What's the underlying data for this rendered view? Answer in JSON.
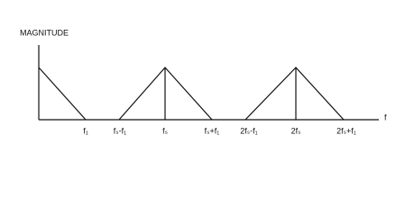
{
  "y_axis_label": "MAGNITUDE",
  "x_axis_label": "f",
  "x_labels": [
    "f₁",
    "fₛ-f₁",
    "fₛ",
    "fₛ+f₁",
    "2fₛ-f₁",
    "2fₛ",
    "2fₛ+f₁"
  ]
}
